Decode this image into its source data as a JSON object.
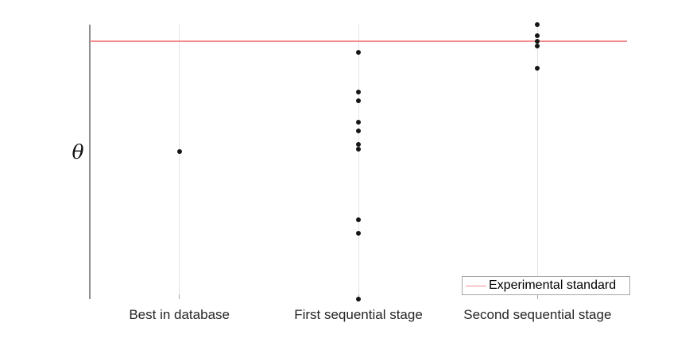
{
  "chart_data": {
    "type": "scatter",
    "title": "",
    "xlabel": "",
    "ylabel": "θ",
    "categories": [
      "Best in database",
      "First sequential stage",
      "Second sequential stage"
    ],
    "series": [
      {
        "name": "Best in database",
        "y_frac": [
          0.538
        ]
      },
      {
        "name": "First sequential stage",
        "y_frac": [
          0.899,
          0.754,
          0.723,
          0.645,
          0.613,
          0.564,
          0.546,
          0.289,
          0.24,
          0.0
        ]
      },
      {
        "name": "Second sequential stage",
        "y_frac": [
          1.0,
          0.96,
          0.939,
          0.922,
          0.841
        ]
      }
    ],
    "reference_line": {
      "label": "Experimental standard",
      "y_frac": 0.939,
      "color": "#f28b8b"
    },
    "ylim": [
      0,
      1
    ],
    "y_tick_labels": [],
    "grid": "vertical-category-lines",
    "legend_position": "bottom-right",
    "marker_color": "#161616",
    "axis_color": "#8f8f8f",
    "gridline_color": "#e4e4e4"
  }
}
